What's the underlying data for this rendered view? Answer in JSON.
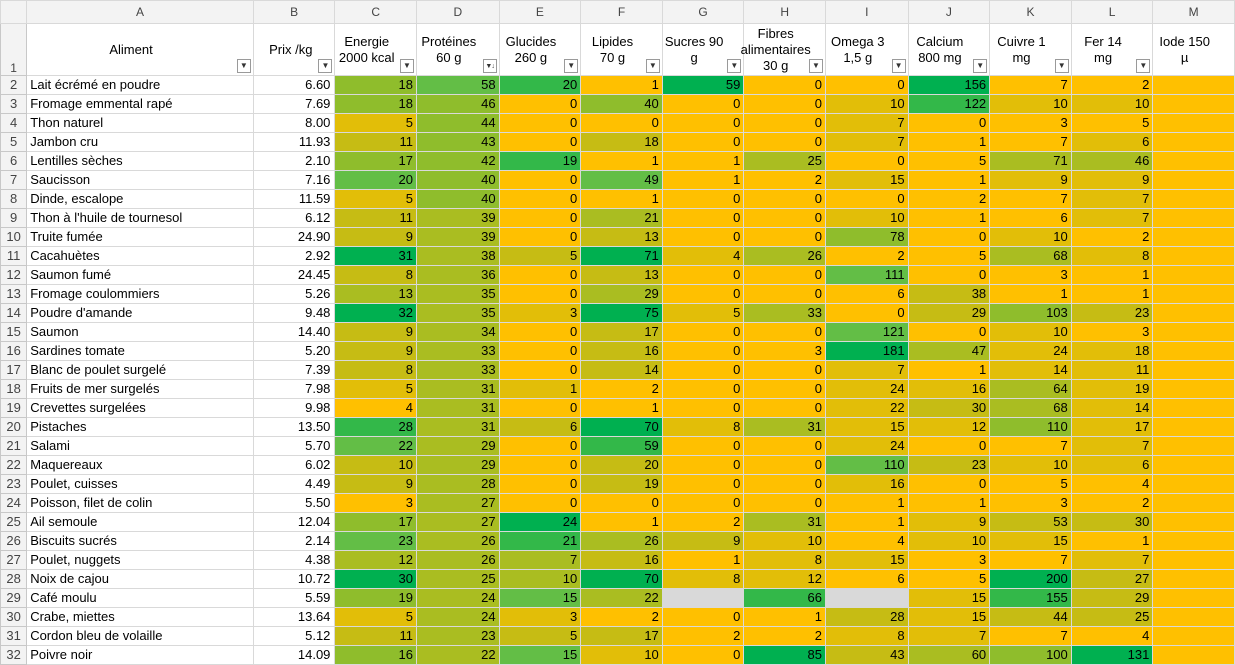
{
  "column_letters": [
    "A",
    "B",
    "C",
    "D",
    "E",
    "F",
    "G",
    "H",
    "I",
    "J",
    "K",
    "L",
    "M"
  ],
  "headers": [
    "Aliment",
    "Prix /kg",
    "Energie 2000 kcal",
    "Protéines 60 g",
    "Glucides 260 g",
    "Lipides 70 g",
    "Sucres 90 g",
    "Fibres alimentaires 30 g",
    "Omega 3 1,5 g",
    "Calcium 800 mg",
    "Cuivre 1 mg",
    "Fer 14 mg",
    "Iode 150 µ"
  ],
  "rows": [
    {
      "n": "2",
      "name": "Lait écrémé en poudre",
      "price": "6.60",
      "v": [
        "18",
        "58",
        "20",
        "1",
        "59",
        "0",
        "0",
        "156",
        "7",
        "2",
        ""
      ]
    },
    {
      "n": "3",
      "name": "Fromage emmental rapé",
      "price": "7.69",
      "v": [
        "18",
        "46",
        "0",
        "40",
        "0",
        "0",
        "10",
        "122",
        "10",
        "10",
        ""
      ]
    },
    {
      "n": "4",
      "name": "Thon naturel",
      "price": "8.00",
      "v": [
        "5",
        "44",
        "0",
        "0",
        "0",
        "0",
        "7",
        "0",
        "3",
        "5",
        ""
      ]
    },
    {
      "n": "5",
      "name": "Jambon cru",
      "price": "11.93",
      "v": [
        "11",
        "43",
        "0",
        "18",
        "0",
        "0",
        "7",
        "1",
        "7",
        "6",
        ""
      ]
    },
    {
      "n": "6",
      "name": "Lentilles sèches",
      "price": "2.10",
      "v": [
        "17",
        "42",
        "19",
        "1",
        "1",
        "25",
        "0",
        "5",
        "71",
        "46",
        ""
      ]
    },
    {
      "n": "7",
      "name": "Saucisson",
      "price": "7.16",
      "v": [
        "20",
        "40",
        "0",
        "49",
        "1",
        "2",
        "15",
        "1",
        "9",
        "9",
        ""
      ]
    },
    {
      "n": "8",
      "name": "Dinde, escalope",
      "price": "11.59",
      "v": [
        "5",
        "40",
        "0",
        "1",
        "0",
        "0",
        "0",
        "2",
        "7",
        "7",
        ""
      ]
    },
    {
      "n": "9",
      "name": "Thon à l'huile de tournesol",
      "price": "6.12",
      "v": [
        "11",
        "39",
        "0",
        "21",
        "0",
        "0",
        "10",
        "1",
        "6",
        "7",
        ""
      ]
    },
    {
      "n": "10",
      "name": "Truite fumée",
      "price": "24.90",
      "v": [
        "9",
        "39",
        "0",
        "13",
        "0",
        "0",
        "78",
        "0",
        "10",
        "2",
        ""
      ]
    },
    {
      "n": "11",
      "name": "Cacahuètes",
      "price": "2.92",
      "v": [
        "31",
        "38",
        "5",
        "71",
        "4",
        "26",
        "2",
        "5",
        "68",
        "8",
        ""
      ]
    },
    {
      "n": "12",
      "name": "Saumon fumé",
      "price": "24.45",
      "v": [
        "8",
        "36",
        "0",
        "13",
        "0",
        "0",
        "111",
        "0",
        "3",
        "1",
        ""
      ]
    },
    {
      "n": "13",
      "name": "Fromage coulommiers",
      "price": "5.26",
      "v": [
        "13",
        "35",
        "0",
        "29",
        "0",
        "0",
        "6",
        "38",
        "1",
        "1",
        ""
      ]
    },
    {
      "n": "14",
      "name": "Poudre d'amande",
      "price": "9.48",
      "v": [
        "32",
        "35",
        "3",
        "75",
        "5",
        "33",
        "0",
        "29",
        "103",
        "23",
        ""
      ]
    },
    {
      "n": "15",
      "name": "Saumon",
      "price": "14.40",
      "v": [
        "9",
        "34",
        "0",
        "17",
        "0",
        "0",
        "121",
        "0",
        "10",
        "3",
        ""
      ]
    },
    {
      "n": "16",
      "name": "Sardines tomate",
      "price": "5.20",
      "v": [
        "9",
        "33",
        "0",
        "16",
        "0",
        "3",
        "181",
        "47",
        "24",
        "18",
        ""
      ]
    },
    {
      "n": "17",
      "name": "Blanc de poulet surgelé",
      "price": "7.39",
      "v": [
        "8",
        "33",
        "0",
        "14",
        "0",
        "0",
        "7",
        "1",
        "14",
        "11",
        ""
      ]
    },
    {
      "n": "18",
      "name": "Fruits de mer surgelés",
      "price": "7.98",
      "v": [
        "5",
        "31",
        "1",
        "2",
        "0",
        "0",
        "24",
        "16",
        "64",
        "19",
        ""
      ]
    },
    {
      "n": "19",
      "name": "Crevettes surgelées",
      "price": "9.98",
      "v": [
        "4",
        "31",
        "0",
        "1",
        "0",
        "0",
        "22",
        "30",
        "68",
        "14",
        ""
      ]
    },
    {
      "n": "20",
      "name": "Pistaches",
      "price": "13.50",
      "v": [
        "28",
        "31",
        "6",
        "70",
        "8",
        "31",
        "15",
        "12",
        "110",
        "17",
        ""
      ]
    },
    {
      "n": "21",
      "name": "Salami",
      "price": "5.70",
      "v": [
        "22",
        "29",
        "0",
        "59",
        "0",
        "0",
        "24",
        "0",
        "7",
        "7",
        ""
      ]
    },
    {
      "n": "22",
      "name": "Maquereaux",
      "price": "6.02",
      "v": [
        "10",
        "29",
        "0",
        "20",
        "0",
        "0",
        "110",
        "23",
        "10",
        "6",
        ""
      ]
    },
    {
      "n": "23",
      "name": "Poulet, cuisses",
      "price": "4.49",
      "v": [
        "9",
        "28",
        "0",
        "19",
        "0",
        "0",
        "16",
        "0",
        "5",
        "4",
        ""
      ]
    },
    {
      "n": "24",
      "name": "Poisson, filet de colin",
      "price": "5.50",
      "v": [
        "3",
        "27",
        "0",
        "0",
        "0",
        "0",
        "1",
        "1",
        "3",
        "2",
        ""
      ]
    },
    {
      "n": "25",
      "name": "Ail semoule",
      "price": "12.04",
      "v": [
        "17",
        "27",
        "24",
        "1",
        "2",
        "31",
        "1",
        "9",
        "53",
        "30",
        ""
      ]
    },
    {
      "n": "26",
      "name": "Biscuits sucrés",
      "price": "2.14",
      "v": [
        "23",
        "26",
        "21",
        "26",
        "9",
        "10",
        "4",
        "10",
        "15",
        "1",
        ""
      ]
    },
    {
      "n": "27",
      "name": "Poulet, nuggets",
      "price": "4.38",
      "v": [
        "12",
        "26",
        "7",
        "16",
        "1",
        "8",
        "15",
        "3",
        "7",
        "7",
        ""
      ]
    },
    {
      "n": "28",
      "name": "Noix de cajou",
      "price": "10.72",
      "v": [
        "30",
        "25",
        "10",
        "70",
        "8",
        "12",
        "6",
        "5",
        "200",
        "27",
        ""
      ]
    },
    {
      "n": "29",
      "name": "Café moulu",
      "price": "5.59",
      "v": [
        "19",
        "24",
        "15",
        "22",
        "",
        "66",
        "",
        "15",
        "155",
        "29",
        ""
      ]
    },
    {
      "n": "30",
      "name": "Crabe, miettes",
      "price": "13.64",
      "v": [
        "5",
        "24",
        "3",
        "2",
        "0",
        "1",
        "28",
        "15",
        "44",
        "25",
        ""
      ]
    },
    {
      "n": "31",
      "name": "Cordon bleu de volaille",
      "price": "5.12",
      "v": [
        "11",
        "23",
        "5",
        "17",
        "2",
        "2",
        "8",
        "7",
        "7",
        "4",
        ""
      ]
    },
    {
      "n": "32",
      "name": "Poivre noir",
      "price": "14.09",
      "v": [
        "16",
        "22",
        "15",
        "10",
        "0",
        "85",
        "43",
        "60",
        "100",
        "131",
        ""
      ]
    }
  ],
  "colors": {
    "green_dark": "#00b050",
    "green": "#33b849",
    "green_light": "#63be46",
    "yellow_green": "#8fbd2c",
    "olive": "#aabd21",
    "olive_light": "#c6bc14",
    "amber": "#e2be08",
    "orange_yellow": "#ffc000",
    "empty": "#d9d9d9"
  },
  "sort_state": {
    "sorted_column": "Protéines 60 g",
    "direction": "descending"
  }
}
